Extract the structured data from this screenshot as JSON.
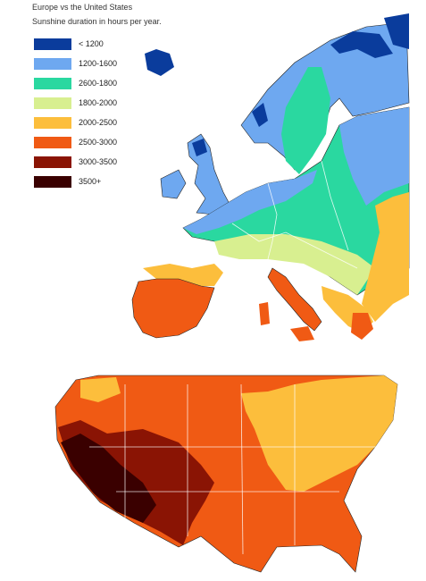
{
  "header": {
    "title": "Europe vs the United States",
    "subtitle": "Sunshine duration in hours per year."
  },
  "legend": [
    {
      "label": "< 1200",
      "color": "#0a3c9c"
    },
    {
      "label": "1200-1600",
      "color": "#6ea8f0"
    },
    {
      "label": "2600-1800",
      "color": "#2ad8a0"
    },
    {
      "label": "1800-2000",
      "color": "#d8ef90"
    },
    {
      "label": "2000-2500",
      "color": "#fcbe3c"
    },
    {
      "label": "2500-3000",
      "color": "#f05a14"
    },
    {
      "label": "3000-3500",
      "color": "#8a1404"
    },
    {
      "label": "3500+",
      "color": "#3a0000"
    }
  ]
}
